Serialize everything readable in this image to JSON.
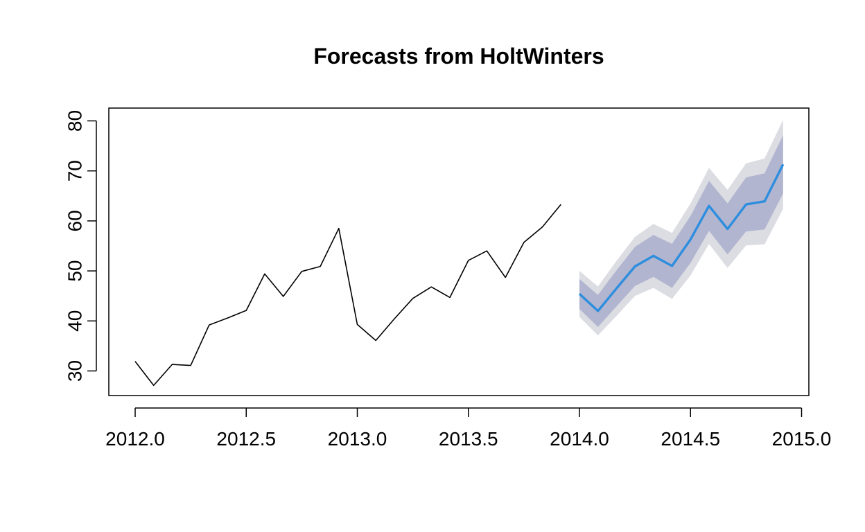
{
  "chart_data": {
    "type": "line",
    "title": "Forecasts from HoltWinters",
    "xlabel": "",
    "ylabel": "",
    "xlim": [
      2011.9,
      2015.0
    ],
    "ylim": [
      25,
      82
    ],
    "x_ticks": [
      2012.0,
      2012.5,
      2013.0,
      2013.5,
      2014.0,
      2014.5,
      2015.0
    ],
    "x_tick_labels": [
      "2012.0",
      "2012.5",
      "2013.0",
      "2013.5",
      "2014.0",
      "2014.5",
      "2015.0"
    ],
    "y_ticks": [
      30,
      40,
      50,
      60,
      70,
      80
    ],
    "y_tick_labels": [
      "30",
      "40",
      "50",
      "60",
      "70",
      "80"
    ],
    "grid": false,
    "colors": {
      "observed": "#000000",
      "forecast": "#2e8ede",
      "band_80": "#b1b5d0",
      "band_95": "#dcdce3"
    },
    "series": [
      {
        "x": [
          2012.0,
          2012.0833,
          2012.1667,
          2012.25,
          2012.3333,
          2012.4167,
          2012.5,
          2012.5833,
          2012.6667,
          2012.75,
          2012.8333,
          2012.9167,
          2013.0,
          2013.0833,
          2013.1667,
          2013.25,
          2013.3333,
          2013.4167,
          2013.5,
          2013.5833,
          2013.6667,
          2013.75,
          2013.8333,
          2013.9167
        ],
        "values": [
          31.9,
          27.1,
          31.3,
          31.1,
          39.2,
          40.6,
          42.1,
          49.4,
          44.9,
          49.9,
          50.9,
          58.5,
          39.3,
          36.1,
          40.4,
          44.5,
          46.8,
          44.7,
          52.1,
          54.0,
          48.7,
          55.7,
          58.8,
          63.3
        ]
      },
      {
        "x": [
          2014.0,
          2014.0833,
          2014.1667,
          2014.25,
          2014.3333,
          2014.4167,
          2014.5,
          2014.5833,
          2014.6667,
          2014.75,
          2014.8333,
          2014.9167
        ],
        "values": [
          45.4,
          42.0,
          46.5,
          50.9,
          53.0,
          51.0,
          56.3,
          63.0,
          58.4,
          63.3,
          63.9,
          71.3
        ],
        "lower_80": [
          42.4,
          38.8,
          42.9,
          47.0,
          48.8,
          46.6,
          51.6,
          58.0,
          53.3,
          57.9,
          58.3,
          65.5
        ],
        "upper_80": [
          48.4,
          45.2,
          50.1,
          54.8,
          57.2,
          55.4,
          61.0,
          68.0,
          63.5,
          68.7,
          69.5,
          77.1
        ],
        "lower_95": [
          40.8,
          37.1,
          41.0,
          45.0,
          46.6,
          44.4,
          49.1,
          55.4,
          50.6,
          55.1,
          55.3,
          62.4
        ],
        "upper_95": [
          50.0,
          46.9,
          52.0,
          56.8,
          59.4,
          57.6,
          63.5,
          70.6,
          66.2,
          71.5,
          72.5,
          80.2
        ]
      }
    ]
  }
}
